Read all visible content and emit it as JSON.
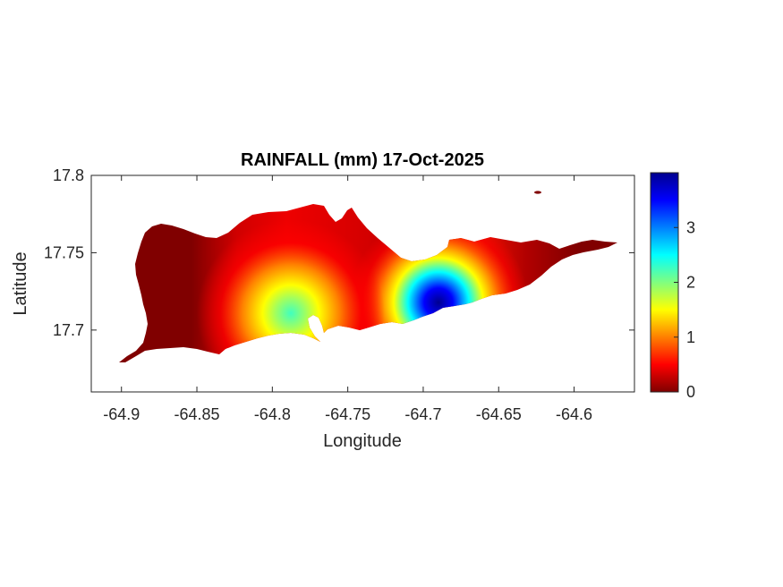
{
  "chart_data": {
    "type": "heatmap",
    "title": "RAINFALL (mm) 17-Oct-2025",
    "xlabel": "Longitude",
    "ylabel": "Latitude",
    "xlim": [
      -64.92,
      -64.56
    ],
    "ylim": [
      17.66,
      17.8
    ],
    "xticks": [
      -64.9,
      -64.85,
      -64.8,
      -64.75,
      -64.7,
      -64.65,
      -64.6
    ],
    "xtick_labels": [
      "-64.9",
      "-64.85",
      "-64.8",
      "-64.75",
      "-64.7",
      "-64.65",
      "-64.6"
    ],
    "yticks": [
      17.7,
      17.75,
      17.8
    ],
    "ytick_labels": [
      "17.7",
      "17.75",
      "17.8"
    ],
    "grid": false,
    "colormap": "jet",
    "colorbar": {
      "range": [
        0,
        4
      ],
      "ticks": [
        0,
        1,
        2,
        3
      ],
      "tick_labels": [
        "0",
        "1",
        "2",
        "3"
      ],
      "colors": [
        "#800000",
        "#ff0000",
        "#ffff00",
        "#00ffff",
        "#0000ff",
        "#00008f"
      ]
    },
    "rainfall_maxima": [
      {
        "lon": -64.685,
        "lat": 17.715,
        "value_mm": 3.8
      },
      {
        "lon": -64.79,
        "lat": 17.712,
        "value_mm": 2.2
      }
    ]
  }
}
